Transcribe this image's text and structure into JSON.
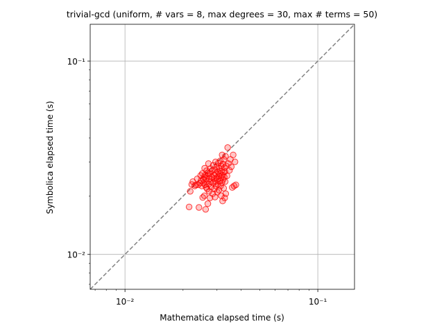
{
  "chart_data": {
    "type": "scatter",
    "title": "trivial-gcd (uniform, # vars = 8, max degrees = 30, max # terms = 50)",
    "xlabel": "Mathematica elapsed time (s)",
    "ylabel": "Symbolica elapsed time (s)",
    "xscale": "log",
    "yscale": "log",
    "xlim": [
      0.0066,
      0.155
    ],
    "ylim": [
      0.0066,
      0.155
    ],
    "x_ticks": [
      {
        "value": 0.01,
        "label": "10⁻²"
      },
      {
        "value": 0.1,
        "label": "10⁻¹"
      }
    ],
    "y_ticks": [
      {
        "value": 0.01,
        "label": "10⁻²"
      },
      {
        "value": 0.1,
        "label": "10⁻¹"
      }
    ],
    "grid": true,
    "reference_line": "y = x (dashed gray)",
    "marker_color": "#ff0000",
    "line_color": "#808080",
    "points": [
      [
        0.0215,
        0.0176
      ],
      [
        0.0218,
        0.0212
      ],
      [
        0.0222,
        0.023
      ],
      [
        0.0225,
        0.0238
      ],
      [
        0.023,
        0.0226
      ],
      [
        0.0233,
        0.0229
      ],
      [
        0.0237,
        0.0246
      ],
      [
        0.024,
        0.0229
      ],
      [
        0.0242,
        0.0175
      ],
      [
        0.0245,
        0.0234
      ],
      [
        0.0247,
        0.0256
      ],
      [
        0.0248,
        0.0241
      ],
      [
        0.025,
        0.0226
      ],
      [
        0.0252,
        0.0262
      ],
      [
        0.0253,
        0.0197
      ],
      [
        0.0255,
        0.0244
      ],
      [
        0.0256,
        0.0234
      ],
      [
        0.0257,
        0.0251
      ],
      [
        0.0258,
        0.0201
      ],
      [
        0.0259,
        0.0279
      ],
      [
        0.026,
        0.0229
      ],
      [
        0.0261,
        0.0257
      ],
      [
        0.0262,
        0.0171
      ],
      [
        0.0263,
        0.0246
      ],
      [
        0.0264,
        0.0222
      ],
      [
        0.0265,
        0.0271
      ],
      [
        0.0266,
        0.0238
      ],
      [
        0.0267,
        0.0218
      ],
      [
        0.0268,
        0.0255
      ],
      [
        0.0269,
        0.0183
      ],
      [
        0.027,
        0.0264
      ],
      [
        0.0271,
        0.0295
      ],
      [
        0.0272,
        0.0231
      ],
      [
        0.0273,
        0.0212
      ],
      [
        0.0274,
        0.0246
      ],
      [
        0.0275,
        0.0262
      ],
      [
        0.0276,
        0.0196
      ],
      [
        0.0278,
        0.0278
      ],
      [
        0.0279,
        0.0238
      ],
      [
        0.028,
        0.0223
      ],
      [
        0.0282,
        0.0251
      ],
      [
        0.0283,
        0.027
      ],
      [
        0.0285,
        0.0206
      ],
      [
        0.0286,
        0.0234
      ],
      [
        0.0287,
        0.0289
      ],
      [
        0.0289,
        0.0246
      ],
      [
        0.029,
        0.0257
      ],
      [
        0.0291,
        0.0218
      ],
      [
        0.0292,
        0.0275
      ],
      [
        0.0293,
        0.0198
      ],
      [
        0.0294,
        0.0238
      ],
      [
        0.0295,
        0.0301
      ],
      [
        0.0296,
        0.0262
      ],
      [
        0.0297,
        0.0226
      ],
      [
        0.0298,
        0.0249
      ],
      [
        0.03,
        0.0284
      ],
      [
        0.0301,
        0.021
      ],
      [
        0.0302,
        0.0244
      ],
      [
        0.0303,
        0.0268
      ],
      [
        0.0304,
        0.0231
      ],
      [
        0.0305,
        0.0297
      ],
      [
        0.0306,
        0.0255
      ],
      [
        0.0307,
        0.0215
      ],
      [
        0.0308,
        0.0279
      ],
      [
        0.031,
        0.024
      ],
      [
        0.0311,
        0.0262
      ],
      [
        0.0312,
        0.0305
      ],
      [
        0.0313,
        0.0226
      ],
      [
        0.0314,
        0.0249
      ],
      [
        0.0315,
        0.0287
      ],
      [
        0.0316,
        0.0201
      ],
      [
        0.0317,
        0.027
      ],
      [
        0.0318,
        0.0235
      ],
      [
        0.0319,
        0.0327
      ],
      [
        0.032,
        0.0257
      ],
      [
        0.0321,
        0.0189
      ],
      [
        0.0322,
        0.0293
      ],
      [
        0.0323,
        0.0244
      ],
      [
        0.0324,
        0.0266
      ],
      [
        0.0325,
        0.022
      ],
      [
        0.0326,
        0.031
      ],
      [
        0.0327,
        0.0251
      ],
      [
        0.0328,
        0.0281
      ],
      [
        0.0329,
        0.0196
      ],
      [
        0.033,
        0.0268
      ],
      [
        0.0331,
        0.0238
      ],
      [
        0.0332,
        0.0322
      ],
      [
        0.0333,
        0.0206
      ],
      [
        0.0335,
        0.0287
      ],
      [
        0.0338,
        0.0255
      ],
      [
        0.0341,
        0.0357
      ],
      [
        0.0344,
        0.0295
      ],
      [
        0.0348,
        0.0272
      ],
      [
        0.0352,
        0.031
      ],
      [
        0.0356,
        0.0284
      ],
      [
        0.036,
        0.0222
      ],
      [
        0.0364,
        0.0327
      ],
      [
        0.0368,
        0.0226
      ],
      [
        0.0372,
        0.0301
      ],
      [
        0.0376,
        0.0229
      ]
    ]
  }
}
